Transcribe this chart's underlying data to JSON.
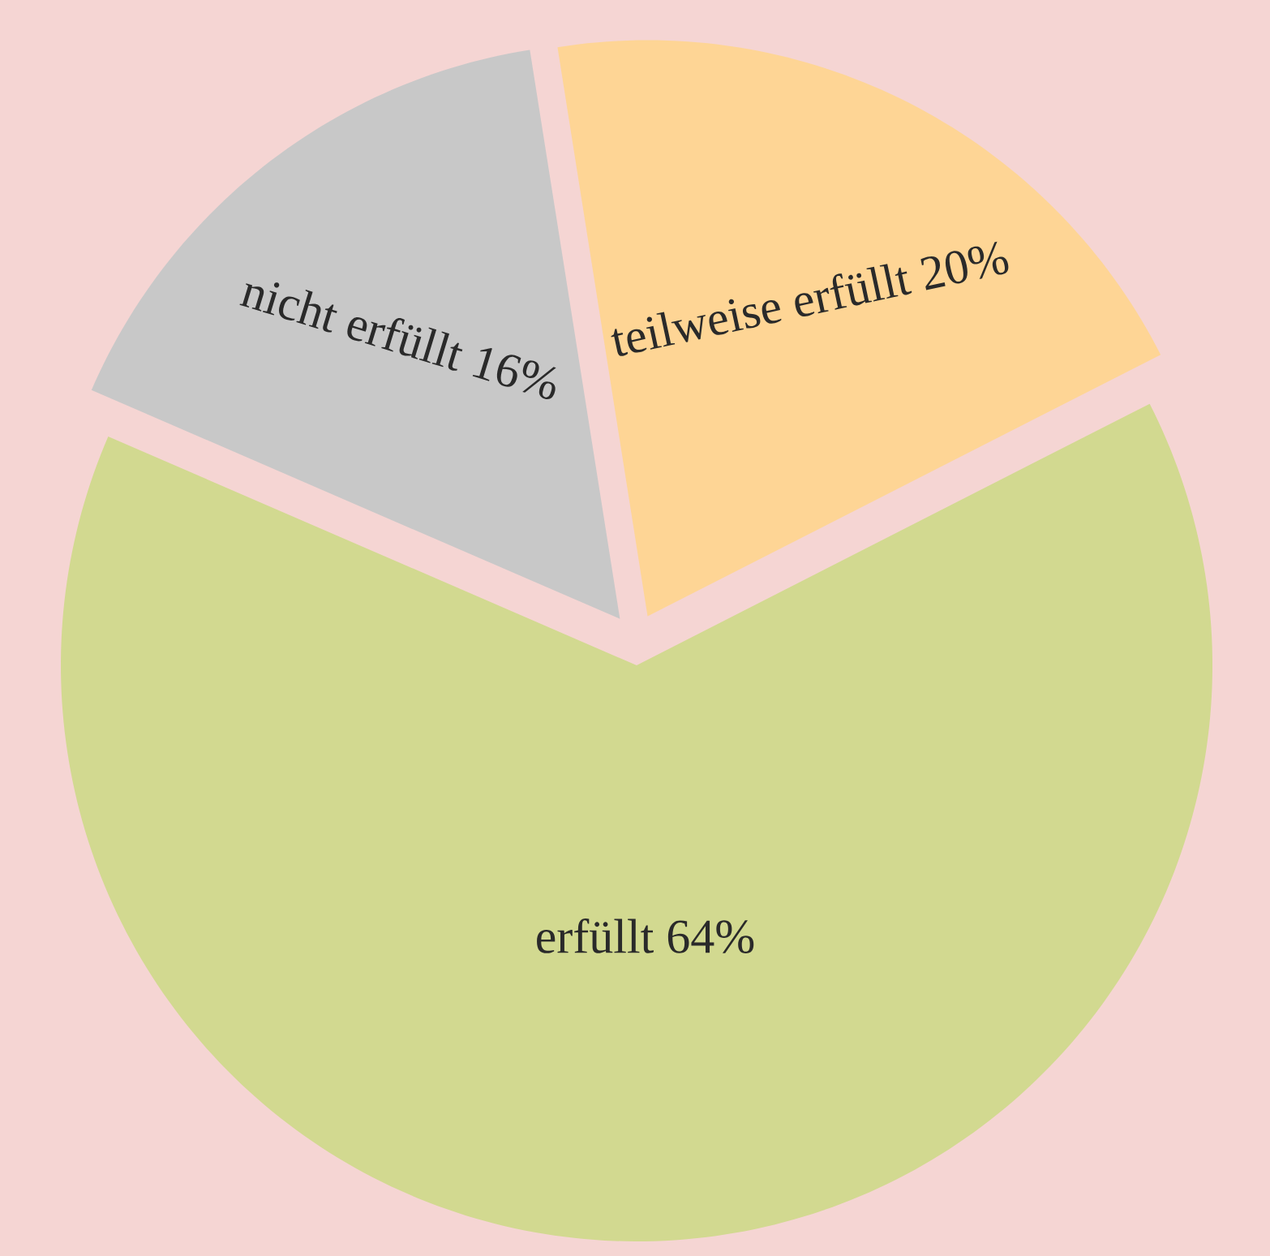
{
  "chart_data": {
    "type": "pie",
    "categories": [
      "teilweise erfüllt",
      "erfüllt",
      "nicht erfüllt"
    ],
    "values": [
      20,
      64,
      16
    ],
    "value_labels": [
      "20%",
      "64%",
      "16%"
    ],
    "colors": [
      "#fed595",
      "#d2d990",
      "#c8c8c8"
    ]
  }
}
